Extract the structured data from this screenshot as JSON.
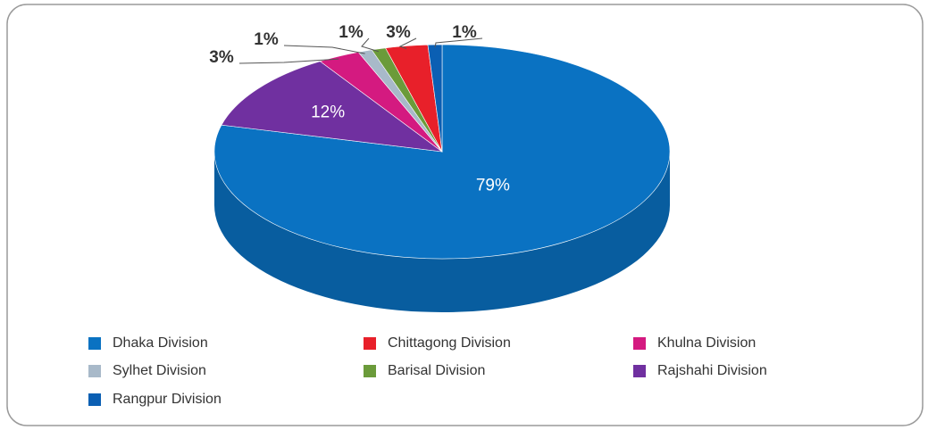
{
  "chart_data": {
    "type": "pie",
    "categories": [
      "Dhaka Division",
      "Rajshahi Division",
      "Khulna Division",
      "Sylhet Division",
      "Barisal Division",
      "Chittagong Division",
      "Rangpur Division"
    ],
    "values": [
      79,
      12,
      3,
      1,
      1,
      3,
      1
    ],
    "value_labels": [
      "79%",
      "12%",
      "3%",
      "1%",
      "1%",
      "3%",
      "1%"
    ],
    "colors": [
      "#0a72c2",
      "#7030a0",
      "#d41a80",
      "#a8b9c9",
      "#6b9b3a",
      "#e8202a",
      "#0b5fb3"
    ]
  }
}
